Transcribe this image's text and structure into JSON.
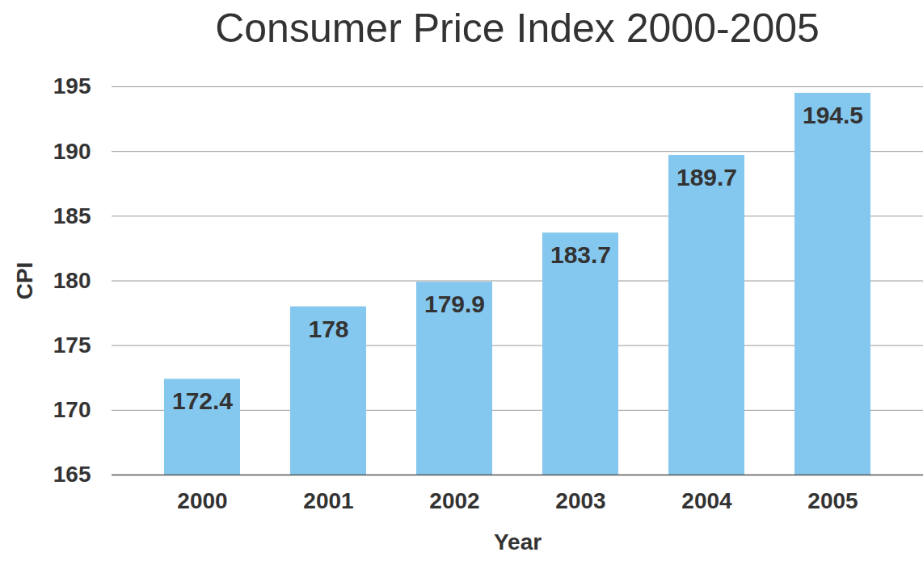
{
  "chart_data": {
    "type": "bar",
    "title": "Consumer Price Index 2000-2005",
    "x_label": "Year",
    "y_label": "CPI",
    "categories": [
      "2000",
      "2001",
      "2002",
      "2003",
      "2004",
      "2005"
    ],
    "values": [
      172.4,
      178,
      179.9,
      183.7,
      189.7,
      194.5
    ],
    "color": "#85c8ef",
    "ylim": [
      165,
      195
    ],
    "yticks": [
      165,
      170,
      175,
      180,
      185,
      190,
      195
    ],
    "grid": true,
    "data_labels": true
  }
}
